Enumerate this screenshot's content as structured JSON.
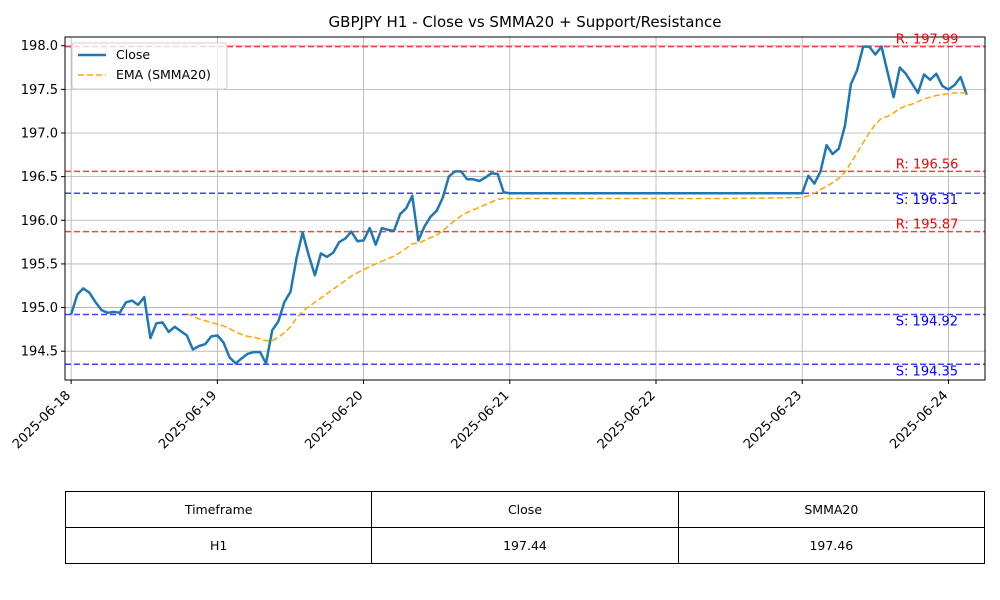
{
  "chart_data": {
    "type": "line",
    "title": "GBPJPY H1 - Close vs SMMA20 + Support/Resistance",
    "xlabel": "",
    "ylabel": "",
    "xlim": [
      -0.042,
      6.25
    ],
    "ylim": [
      194.17,
      198.1
    ],
    "grid": true,
    "legend_position": "top-left",
    "x_ticks": [
      {
        "x": 0,
        "label": "2025-06-18"
      },
      {
        "x": 1,
        "label": "2025-06-19"
      },
      {
        "x": 2,
        "label": "2025-06-20"
      },
      {
        "x": 3,
        "label": "2025-06-21"
      },
      {
        "x": 4,
        "label": "2025-06-22"
      },
      {
        "x": 5,
        "label": "2025-06-23"
      },
      {
        "x": 6,
        "label": "2025-06-24"
      }
    ],
    "y_ticks": [
      194.5,
      195.0,
      195.5,
      196.0,
      196.5,
      197.0,
      197.5,
      198.0
    ],
    "series": [
      {
        "name": "Close",
        "color": "#1f77b4",
        "style": "solid",
        "points": [
          [
            0.0,
            194.92
          ],
          [
            0.042,
            195.15
          ],
          [
            0.083,
            195.22
          ],
          [
            0.125,
            195.17
          ],
          [
            0.167,
            195.06
          ],
          [
            0.208,
            194.97
          ],
          [
            0.25,
            194.94
          ],
          [
            0.292,
            194.95
          ],
          [
            0.333,
            194.94
          ],
          [
            0.375,
            195.06
          ],
          [
            0.417,
            195.08
          ],
          [
            0.458,
            195.03
          ],
          [
            0.5,
            195.12
          ],
          [
            0.542,
            194.65
          ],
          [
            0.583,
            194.82
          ],
          [
            0.625,
            194.83
          ],
          [
            0.667,
            194.72
          ],
          [
            0.708,
            194.78
          ],
          [
            0.75,
            194.73
          ],
          [
            0.792,
            194.68
          ],
          [
            0.833,
            194.52
          ],
          [
            0.875,
            194.56
          ],
          [
            0.917,
            194.58
          ],
          [
            0.958,
            194.67
          ],
          [
            1.0,
            194.68
          ],
          [
            1.042,
            194.6
          ],
          [
            1.083,
            194.43
          ],
          [
            1.125,
            194.36
          ],
          [
            1.167,
            194.42
          ],
          [
            1.208,
            194.47
          ],
          [
            1.25,
            194.49
          ],
          [
            1.292,
            194.49
          ],
          [
            1.333,
            194.36
          ],
          [
            1.375,
            194.74
          ],
          [
            1.417,
            194.84
          ],
          [
            1.458,
            195.06
          ],
          [
            1.5,
            195.18
          ],
          [
            1.542,
            195.57
          ],
          [
            1.583,
            195.86
          ],
          [
            1.625,
            195.6
          ],
          [
            1.667,
            195.37
          ],
          [
            1.708,
            195.62
          ],
          [
            1.75,
            195.58
          ],
          [
            1.792,
            195.63
          ],
          [
            1.833,
            195.75
          ],
          [
            1.875,
            195.79
          ],
          [
            1.917,
            195.87
          ],
          [
            1.958,
            195.76
          ],
          [
            2.0,
            195.77
          ],
          [
            2.042,
            195.91
          ],
          [
            2.083,
            195.72
          ],
          [
            2.125,
            195.91
          ],
          [
            2.167,
            195.89
          ],
          [
            2.208,
            195.88
          ],
          [
            2.25,
            196.07
          ],
          [
            2.292,
            196.14
          ],
          [
            2.333,
            196.28
          ],
          [
            2.375,
            195.77
          ],
          [
            2.417,
            195.93
          ],
          [
            2.458,
            196.04
          ],
          [
            2.5,
            196.11
          ],
          [
            2.542,
            196.26
          ],
          [
            2.583,
            196.5
          ],
          [
            2.625,
            196.56
          ],
          [
            2.667,
            196.56
          ],
          [
            2.708,
            196.47
          ],
          [
            2.75,
            196.47
          ],
          [
            2.792,
            196.45
          ],
          [
            2.833,
            196.49
          ],
          [
            2.875,
            196.54
          ],
          [
            2.917,
            196.53
          ],
          [
            2.958,
            196.32
          ],
          [
            3.0,
            196.31
          ],
          [
            3.5,
            196.31
          ],
          [
            4.0,
            196.31
          ],
          [
            4.5,
            196.31
          ],
          [
            5.0,
            196.31
          ],
          [
            5.042,
            196.51
          ],
          [
            5.083,
            196.42
          ],
          [
            5.125,
            196.56
          ],
          [
            5.167,
            196.86
          ],
          [
            5.208,
            196.76
          ],
          [
            5.25,
            196.82
          ],
          [
            5.292,
            197.08
          ],
          [
            5.333,
            197.56
          ],
          [
            5.375,
            197.72
          ],
          [
            5.417,
            197.99
          ],
          [
            5.458,
            197.99
          ],
          [
            5.5,
            197.9
          ],
          [
            5.542,
            197.99
          ],
          [
            5.583,
            197.7
          ],
          [
            5.625,
            197.41
          ],
          [
            5.667,
            197.75
          ],
          [
            5.708,
            197.68
          ],
          [
            5.75,
            197.57
          ],
          [
            5.792,
            197.46
          ],
          [
            5.833,
            197.67
          ],
          [
            5.875,
            197.61
          ],
          [
            5.917,
            197.68
          ],
          [
            5.958,
            197.54
          ],
          [
            6.0,
            197.5
          ],
          [
            6.042,
            197.55
          ],
          [
            6.083,
            197.64
          ],
          [
            6.125,
            197.44
          ]
        ]
      },
      {
        "name": "EMA (SMMA20)",
        "color": "#ffa500",
        "style": "dashed",
        "points": [
          [
            0.792,
            194.93
          ],
          [
            0.833,
            194.9
          ],
          [
            0.875,
            194.87
          ],
          [
            0.917,
            194.85
          ],
          [
            0.958,
            194.83
          ],
          [
            1.0,
            194.81
          ],
          [
            1.042,
            194.79
          ],
          [
            1.083,
            194.76
          ],
          [
            1.125,
            194.72
          ],
          [
            1.167,
            194.69
          ],
          [
            1.208,
            194.67
          ],
          [
            1.25,
            194.66
          ],
          [
            1.292,
            194.64
          ],
          [
            1.333,
            194.62
          ],
          [
            1.375,
            194.62
          ],
          [
            1.417,
            194.66
          ],
          [
            1.458,
            194.71
          ],
          [
            1.5,
            194.78
          ],
          [
            1.542,
            194.88
          ],
          [
            1.583,
            194.96
          ],
          [
            1.625,
            195.01
          ],
          [
            1.667,
            195.06
          ],
          [
            1.708,
            195.11
          ],
          [
            1.75,
            195.16
          ],
          [
            1.792,
            195.21
          ],
          [
            1.833,
            195.26
          ],
          [
            1.875,
            195.31
          ],
          [
            1.917,
            195.36
          ],
          [
            1.958,
            195.4
          ],
          [
            2.0,
            195.43
          ],
          [
            2.042,
            195.47
          ],
          [
            2.083,
            195.5
          ],
          [
            2.125,
            195.53
          ],
          [
            2.167,
            195.56
          ],
          [
            2.208,
            195.59
          ],
          [
            2.25,
            195.63
          ],
          [
            2.292,
            195.68
          ],
          [
            2.333,
            195.73
          ],
          [
            2.375,
            195.74
          ],
          [
            2.417,
            195.77
          ],
          [
            2.458,
            195.8
          ],
          [
            2.5,
            195.83
          ],
          [
            2.542,
            195.88
          ],
          [
            2.583,
            195.94
          ],
          [
            2.625,
            196.0
          ],
          [
            2.667,
            196.05
          ],
          [
            2.708,
            196.09
          ],
          [
            2.75,
            196.12
          ],
          [
            2.792,
            196.15
          ],
          [
            2.833,
            196.18
          ],
          [
            2.875,
            196.21
          ],
          [
            2.917,
            196.24
          ],
          [
            2.958,
            196.25
          ],
          [
            3.0,
            196.25
          ],
          [
            3.5,
            196.25
          ],
          [
            4.0,
            196.25
          ],
          [
            4.5,
            196.25
          ],
          [
            4.958,
            196.26
          ],
          [
            5.0,
            196.26
          ],
          [
            5.042,
            196.28
          ],
          [
            5.083,
            196.31
          ],
          [
            5.125,
            196.35
          ],
          [
            5.167,
            196.39
          ],
          [
            5.208,
            196.43
          ],
          [
            5.25,
            196.48
          ],
          [
            5.292,
            196.55
          ],
          [
            5.333,
            196.66
          ],
          [
            5.375,
            196.77
          ],
          [
            5.417,
            196.89
          ],
          [
            5.458,
            197.0
          ],
          [
            5.5,
            197.1
          ],
          [
            5.542,
            197.17
          ],
          [
            5.583,
            197.19
          ],
          [
            5.625,
            197.23
          ],
          [
            5.667,
            197.28
          ],
          [
            5.708,
            197.31
          ],
          [
            5.75,
            197.33
          ],
          [
            5.792,
            197.36
          ],
          [
            5.833,
            197.39
          ],
          [
            5.875,
            197.41
          ],
          [
            5.917,
            197.43
          ],
          [
            5.958,
            197.44
          ],
          [
            6.0,
            197.45
          ],
          [
            6.042,
            197.46
          ],
          [
            6.083,
            197.46
          ],
          [
            6.125,
            197.46
          ]
        ]
      }
    ],
    "levels": [
      {
        "kind": "resistance",
        "value": 197.99,
        "label": "R: 197.99",
        "color": "#ff0000"
      },
      {
        "kind": "resistance",
        "value": 196.56,
        "label": "R: 196.56",
        "color": "#ff0000"
      },
      {
        "kind": "support",
        "value": 196.31,
        "label": "S: 196.31",
        "color": "#0000ff"
      },
      {
        "kind": "resistance",
        "value": 195.87,
        "label": "R: 195.87",
        "color": "#ff0000"
      },
      {
        "kind": "support",
        "value": 194.92,
        "label": "S: 194.92",
        "color": "#0000ff"
      },
      {
        "kind": "support",
        "value": 194.35,
        "label": "S: 194.35",
        "color": "#0000ff"
      }
    ]
  },
  "table": {
    "headers": [
      "Timeframe",
      "Close",
      "SMMA20"
    ],
    "rows": [
      [
        "H1",
        "197.44",
        "197.46"
      ]
    ]
  }
}
